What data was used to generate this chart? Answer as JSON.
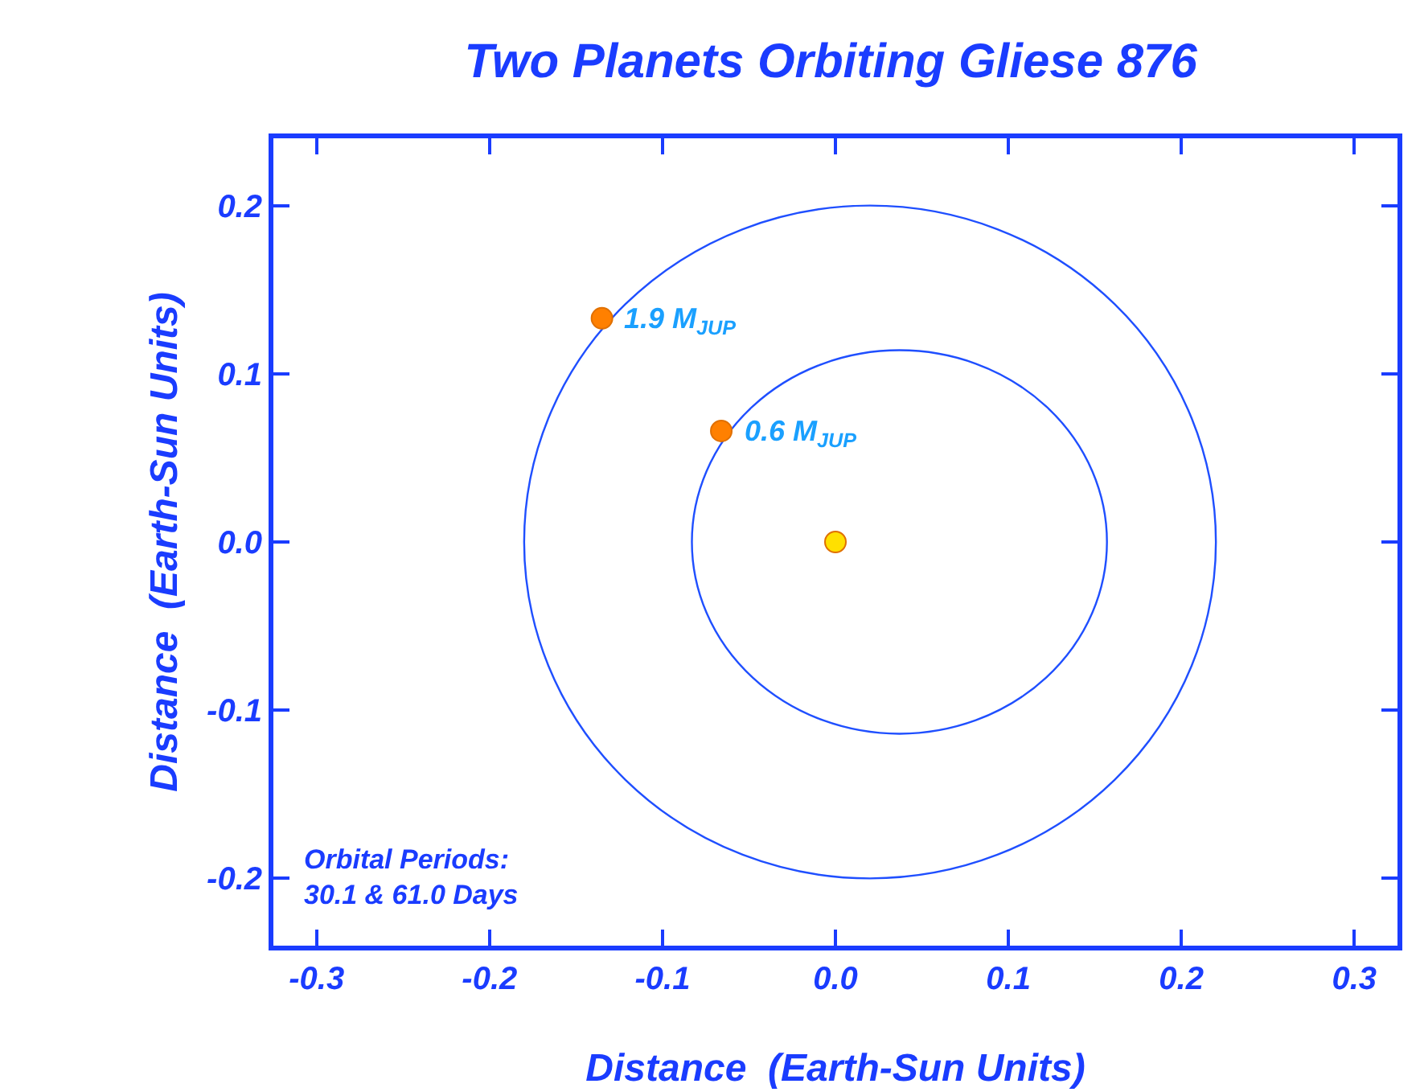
{
  "chart_data": {
    "type": "scatter",
    "title": "Two Planets Orbiting Gliese 876",
    "xlabel": "Distance  (Earth-Sun Units)",
    "ylabel": "Distance  (Earth-Sun Units)",
    "xlim": [
      -0.325,
      0.325
    ],
    "ylim": [
      -0.24,
      0.24
    ],
    "xticks": [
      -0.3,
      -0.2,
      -0.1,
      {
        "value": 0,
        "label": "0.0"
      },
      0.1,
      0.2,
      0.3
    ],
    "yticks": [
      -0.2,
      -0.1,
      {
        "value": 0,
        "label": "0.0"
      },
      0.1,
      0.2
    ],
    "grid": false,
    "series": [
      {
        "type": "scatter",
        "marker": "circle",
        "color": "#ff8000",
        "x": [
          -0.135,
          -0.066
        ],
        "values": [
          0.133,
          0.066
        ]
      },
      {
        "type": "scatter",
        "marker": "circle",
        "color": "#ffe000",
        "x": [
          0
        ],
        "values": [
          0
        ]
      }
    ],
    "annotations": [
      {
        "text": "1.9 M$_{JUP}$",
        "x": -0.135,
        "y": 0.133
      },
      {
        "text": "0.6 M$_{JUP}$",
        "x": -0.066,
        "y": 0.066
      },
      "Orbital Periods:\n30.1 & 61.0 Days"
    ]
  }
}
